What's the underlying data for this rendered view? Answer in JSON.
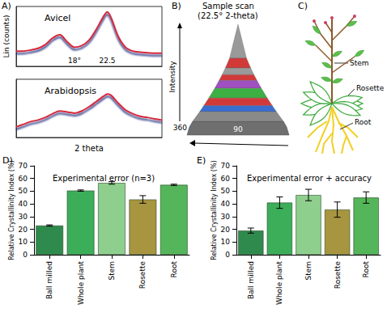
{
  "chart_data": [
    {
      "type": "line",
      "panel": "A)",
      "title": "Avicel",
      "y_label": "Lin (counts)",
      "x": [
        10,
        11,
        12,
        13,
        14,
        15,
        16,
        17,
        18,
        19,
        20,
        21,
        22,
        22.5,
        23,
        24,
        25,
        26,
        27,
        28,
        29,
        30
      ],
      "values": [
        28,
        28,
        30,
        33,
        40,
        52,
        58,
        45,
        35,
        38,
        48,
        68,
        92,
        100,
        90,
        55,
        35,
        28,
        26,
        25,
        24,
        24
      ],
      "color": "#d42a3a",
      "xlim": [
        10,
        30
      ],
      "ylim": [
        0,
        110
      ],
      "tick_labels": false,
      "grid": false,
      "annotations": [
        {
          "text": "18°",
          "x": 18
        },
        {
          "text": "22.5",
          "x": 22.5
        }
      ]
    },
    {
      "type": "line",
      "title": "Arabidopsis",
      "x_label": "2 theta",
      "x": [
        10,
        11,
        12,
        13,
        14,
        15,
        16,
        17,
        18,
        19,
        20,
        21,
        22,
        22.5,
        23,
        24,
        25,
        26,
        27,
        28,
        29,
        30
      ],
      "values": [
        20,
        25,
        30,
        33,
        38,
        45,
        50,
        48,
        46,
        50,
        58,
        68,
        78,
        82,
        80,
        65,
        52,
        45,
        40,
        38,
        35,
        33
      ],
      "color": "#d42a3a",
      "xlim": [
        10,
        30
      ],
      "ylim": [
        0,
        110
      ],
      "tick_labels": false,
      "grid": false
    },
    {
      "type": "bar",
      "panel": "D)",
      "title": "Experimental error (n=3)",
      "y_label": "Relative Crystallinity Index (%)",
      "categories": [
        "Ball milled",
        "Whole plant",
        "Stem",
        "Rosette",
        "Root"
      ],
      "values": [
        23,
        50.5,
        56.5,
        43.5,
        55
      ],
      "errors": [
        0.5,
        0.5,
        1,
        3,
        0.5
      ],
      "colors": [
        "#2f8a4e",
        "#3cae5a",
        "#8fcf8e",
        "#a89540",
        "#55b55a"
      ],
      "ylim": [
        0,
        70
      ],
      "yticks": [
        0,
        10,
        20,
        30,
        40,
        50,
        60,
        70
      ],
      "grid": false
    },
    {
      "type": "bar",
      "panel": "E)",
      "title": "Experimental error + accuracy",
      "y_label": "Relative Crystallinity Index (%)",
      "categories": [
        "Ball milled",
        "Whole plant",
        "Stem",
        "Rosette",
        "Root"
      ],
      "values": [
        19,
        41,
        47,
        35.5,
        45
      ],
      "errors": [
        2,
        4.5,
        4.5,
        6,
        4.5
      ],
      "colors": [
        "#2f8a4e",
        "#3cae5a",
        "#8fcf8e",
        "#a89540",
        "#55b55a"
      ],
      "ylim": [
        0,
        70
      ],
      "yticks": [
        0,
        10,
        20,
        30,
        40,
        50,
        60,
        70
      ],
      "grid": false
    }
  ],
  "sample_scan": {
    "panel": "B)",
    "title": "Sample scan",
    "subtitle": "(22.5° 2-theta)",
    "axis_label": "Intensity",
    "labels": [
      "360",
      "90"
    ]
  },
  "plant_diagram": {
    "panel": "C)",
    "labels": [
      "Stem",
      "Rosette",
      "Root"
    ]
  }
}
